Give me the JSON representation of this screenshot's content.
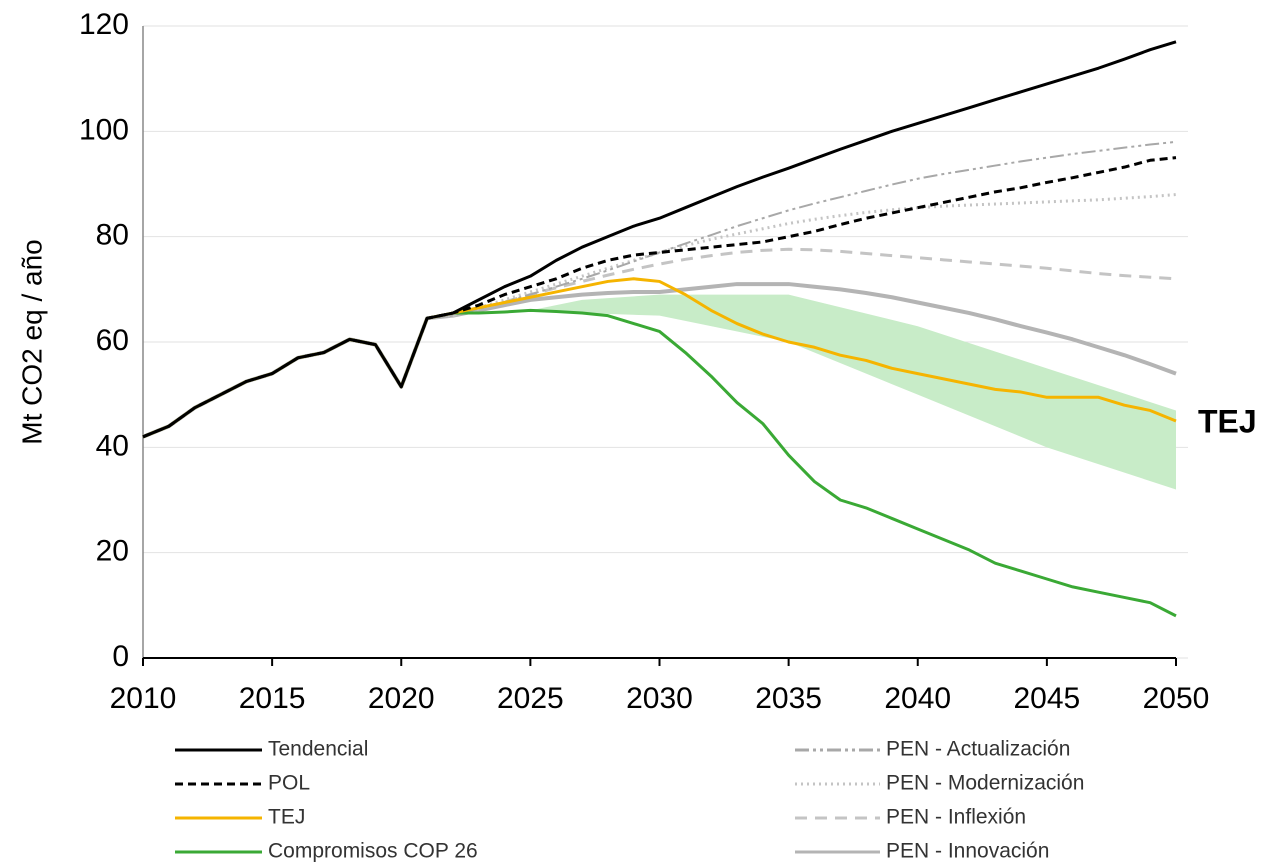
{
  "chart_data": {
    "type": "line",
    "ylabel": "Mt CO2 eq / año",
    "annotation": {
      "text": "TEJ",
      "color": "#f0a500"
    },
    "x": [
      2010,
      2011,
      2012,
      2013,
      2014,
      2015,
      2016,
      2017,
      2018,
      2019,
      2020,
      2021,
      2022,
      2023,
      2024,
      2025,
      2026,
      2027,
      2028,
      2029,
      2030,
      2031,
      2032,
      2033,
      2034,
      2035,
      2036,
      2037,
      2038,
      2039,
      2040,
      2041,
      2042,
      2043,
      2044,
      2045,
      2046,
      2047,
      2048,
      2049,
      2050
    ],
    "xlim": [
      2010,
      2050
    ],
    "xticks": [
      2010,
      2015,
      2020,
      2025,
      2030,
      2035,
      2040,
      2045,
      2050
    ],
    "ylim": [
      0,
      120
    ],
    "yticks": [
      0,
      20,
      40,
      60,
      80,
      100,
      120
    ],
    "grid": true,
    "band": {
      "color": "#c8ecc8",
      "x": [
        2025,
        2027,
        2030,
        2035,
        2040,
        2045,
        2050
      ],
      "lower": [
        66,
        65.5,
        65,
        60,
        50,
        40,
        32
      ],
      "upper": [
        66,
        68,
        69,
        69,
        63,
        55,
        47
      ]
    },
    "series": [
      {
        "name": "Tendencial",
        "color": "#000000",
        "dash": "",
        "width": 3,
        "values": [
          42,
          44,
          47.5,
          50,
          52.5,
          54,
          57,
          58,
          60.5,
          59.5,
          51.5,
          64.5,
          65.5,
          68,
          70.5,
          72.5,
          75.5,
          78,
          80,
          82,
          83.5,
          85.5,
          87.5,
          89.5,
          91.3,
          93,
          94.8,
          96.6,
          98.3,
          100,
          101.5,
          103,
          104.5,
          106,
          107.5,
          109,
          110.5,
          112,
          113.7,
          115.5,
          117
        ]
      },
      {
        "name": "POL",
        "color": "#000000",
        "dash": "8 5",
        "width": 3,
        "values": [
          42,
          44,
          47.5,
          50,
          52.5,
          54,
          57,
          58,
          60.5,
          59.5,
          51.5,
          64.5,
          65.5,
          67,
          69,
          70.5,
          72,
          74,
          75.5,
          76.5,
          77,
          77.5,
          78,
          78.5,
          79,
          80,
          81,
          82.3,
          83.5,
          84.5,
          85.5,
          86.5,
          87.5,
          88.5,
          89.3,
          90.3,
          91.2,
          92.2,
          93.2,
          94.5,
          95
        ]
      },
      {
        "name": "TEJ",
        "color": "#f5b400",
        "dash": "",
        "width": 3,
        "values": [
          42,
          44,
          47.5,
          50,
          52.5,
          54,
          57,
          58,
          60.5,
          59.5,
          51.5,
          64.5,
          65.5,
          66.5,
          67.5,
          68.5,
          69.5,
          70.5,
          71.5,
          72,
          71.5,
          69,
          66,
          63.5,
          61.5,
          60,
          59,
          57.5,
          56.5,
          55,
          54,
          53,
          52,
          51,
          50.5,
          49.5,
          49.5,
          49.5,
          48,
          47,
          45
        ]
      },
      {
        "name": "Compromisos COP 26",
        "color": "#3aa935",
        "dash": "",
        "width": 3,
        "values": [
          42,
          44,
          47.5,
          50,
          52.5,
          54,
          57,
          58,
          60.5,
          59.5,
          51.5,
          64.5,
          65.5,
          65.5,
          65.7,
          66,
          65.8,
          65.5,
          65,
          63.5,
          62,
          58,
          53.5,
          48.5,
          44.5,
          38.5,
          33.5,
          30,
          28.5,
          26.5,
          24.5,
          22.5,
          20.5,
          18,
          16.5,
          15,
          13.5,
          12.5,
          11.5,
          10.5,
          8
        ]
      },
      {
        "name": "PEN - Actualización",
        "color": "#a8a8a8",
        "dash": "14 4 3 4 3 4",
        "width": 2,
        "values": [
          42,
          44,
          47.5,
          50,
          52.5,
          54,
          57,
          58,
          60.5,
          59.5,
          51.5,
          64.5,
          65,
          66.3,
          67.6,
          69,
          70.5,
          72,
          73.6,
          75.3,
          77,
          78.7,
          80.3,
          82,
          83.5,
          85,
          86.3,
          87.5,
          88.7,
          89.9,
          91,
          91.9,
          92.7,
          93.5,
          94.3,
          95,
          95.7,
          96.3,
          96.9,
          97.5,
          98
        ]
      },
      {
        "name": "PEN - Modernización",
        "color": "#c4c4c4",
        "dash": "2 4",
        "width": 3,
        "values": [
          42,
          44,
          47.5,
          50,
          52.5,
          54,
          57,
          58,
          60.5,
          59.5,
          51.5,
          64.5,
          65,
          66.5,
          68,
          69.5,
          71,
          72.5,
          74,
          75.5,
          77,
          78.3,
          79.5,
          80.5,
          81.5,
          82.5,
          83.3,
          84,
          84.6,
          85.1,
          85.5,
          85.8,
          86,
          86.2,
          86.4,
          86.6,
          86.8,
          87,
          87.3,
          87.6,
          88
        ]
      },
      {
        "name": "PEN - Inflexión",
        "color": "#c4c4c4",
        "dash": "12 8",
        "width": 3,
        "values": [
          42,
          44,
          47.5,
          50,
          52.5,
          54,
          57,
          58,
          60.5,
          59.5,
          51.5,
          64.5,
          65,
          66.3,
          67.6,
          69,
          70.3,
          71.5,
          72.7,
          73.8,
          74.8,
          75.7,
          76.4,
          77,
          77.4,
          77.6,
          77.5,
          77.2,
          76.8,
          76.4,
          76,
          75.6,
          75.2,
          74.8,
          74.4,
          74,
          73.5,
          73,
          72.6,
          72.3,
          72
        ]
      },
      {
        "name": "PEN - Innovación",
        "color": "#b4b4b4",
        "dash": "",
        "width": 4,
        "values": [
          42,
          44,
          47.5,
          50,
          52.5,
          54,
          57,
          58,
          60.5,
          59.5,
          51.5,
          64.5,
          65,
          66,
          67,
          68,
          68.5,
          69,
          69.3,
          69.5,
          69.5,
          70,
          70.5,
          71,
          71,
          71,
          70.5,
          70,
          69.3,
          68.5,
          67.5,
          66.5,
          65.5,
          64.3,
          63,
          61.8,
          60.5,
          59,
          57.5,
          55.8,
          54
        ]
      }
    ]
  }
}
